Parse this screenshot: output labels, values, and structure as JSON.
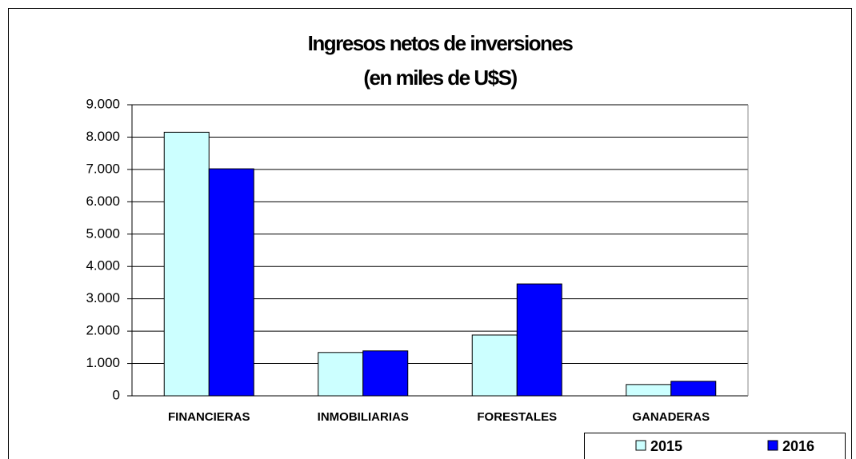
{
  "chart_data": {
    "type": "bar",
    "title": "Ingresos netos de inversiones",
    "subtitle": "(en miles de U$S)",
    "categories": [
      "FINANCIERAS",
      "INMOBILIARIAS",
      "FORESTALES",
      "GANADERAS"
    ],
    "series": [
      {
        "name": "2015",
        "color": "#ccffff",
        "values": [
          8150,
          1340,
          1880,
          350
        ]
      },
      {
        "name": "2016",
        "color": "#0000ff",
        "values": [
          7020,
          1390,
          3460,
          450
        ]
      }
    ],
    "ylim": [
      0,
      9000
    ],
    "yticks": [
      0,
      {
        "value": 1000,
        "label": "1.000"
      },
      {
        "value": 2000,
        "label": "2.000"
      },
      {
        "value": 3000,
        "label": "3.000"
      },
      {
        "value": 4000,
        "label": "4.000"
      },
      {
        "value": 5000,
        "label": "5.000"
      },
      {
        "value": 6000,
        "label": "6.000"
      },
      {
        "value": 7000,
        "label": "7.000"
      },
      {
        "value": 8000,
        "label": "8.000"
      },
      {
        "value": 9000,
        "label": "9.000"
      }
    ],
    "grid": true,
    "legend": "bottom-right"
  }
}
